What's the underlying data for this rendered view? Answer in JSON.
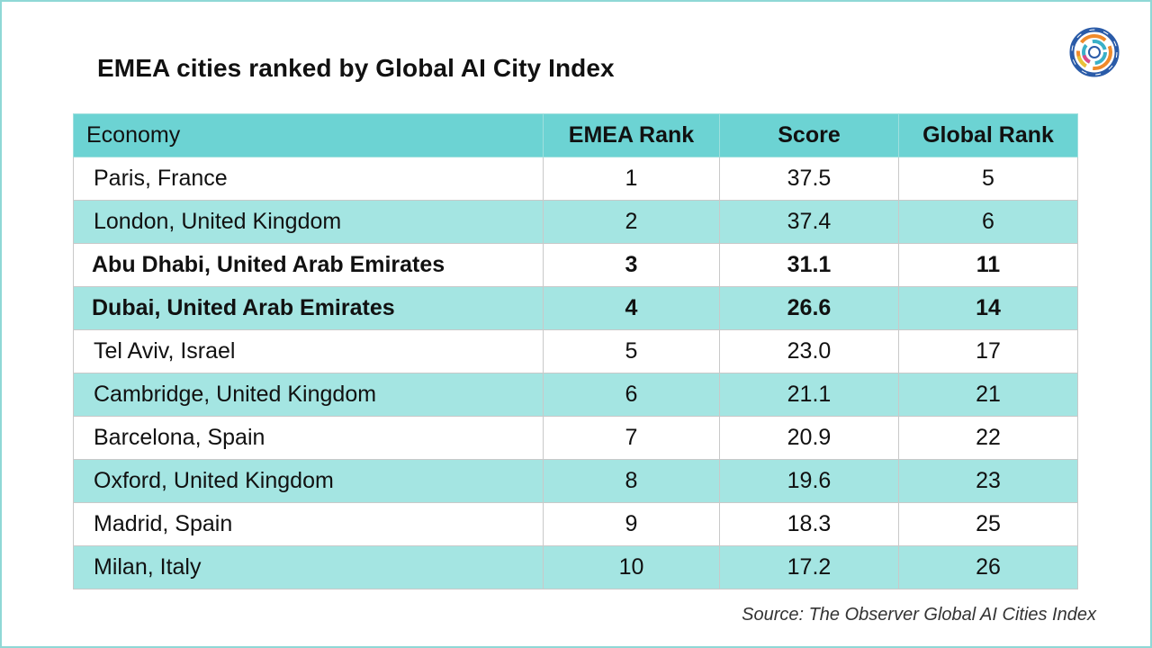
{
  "title": "EMEA cities ranked by Global AI City Index",
  "source": "Source: The Observer Global AI Cities Index",
  "colors": {
    "header_bg": "#6cd3d3",
    "stripe_bg": "#a4e5e2",
    "frame": "#8fd8d6"
  },
  "logo_icon": "concentric-ring-logo-icon",
  "chart_data": {
    "type": "table",
    "columns": [
      "Economy",
      "EMEA Rank",
      "Score",
      "Global Rank"
    ],
    "rows": [
      {
        "economy": "Paris, France",
        "emea_rank": "1",
        "score": "37.5",
        "global_rank": "5",
        "highlight": false
      },
      {
        "economy": "London, United Kingdom",
        "emea_rank": "2",
        "score": "37.4",
        "global_rank": "6",
        "highlight": false
      },
      {
        "economy": "Abu Dhabi, United Arab Emirates",
        "emea_rank": "3",
        "score": "31.1",
        "global_rank": "11",
        "highlight": true
      },
      {
        "economy": "Dubai, United Arab Emirates",
        "emea_rank": "4",
        "score": "26.6",
        "global_rank": "14",
        "highlight": true
      },
      {
        "economy": "Tel Aviv, Israel",
        "emea_rank": "5",
        "score": "23.0",
        "global_rank": "17",
        "highlight": false
      },
      {
        "economy": "Cambridge, United Kingdom",
        "emea_rank": "6",
        "score": "21.1",
        "global_rank": "21",
        "highlight": false
      },
      {
        "economy": "Barcelona, Spain",
        "emea_rank": "7",
        "score": "20.9",
        "global_rank": "22",
        "highlight": false
      },
      {
        "economy": "Oxford, United Kingdom",
        "emea_rank": "8",
        "score": "19.6",
        "global_rank": "23",
        "highlight": false
      },
      {
        "economy": "Madrid, Spain",
        "emea_rank": "9",
        "score": "18.3",
        "global_rank": "25",
        "highlight": false
      },
      {
        "economy": "Milan, Italy",
        "emea_rank": "10",
        "score": "17.2",
        "global_rank": "26",
        "highlight": false
      }
    ]
  }
}
